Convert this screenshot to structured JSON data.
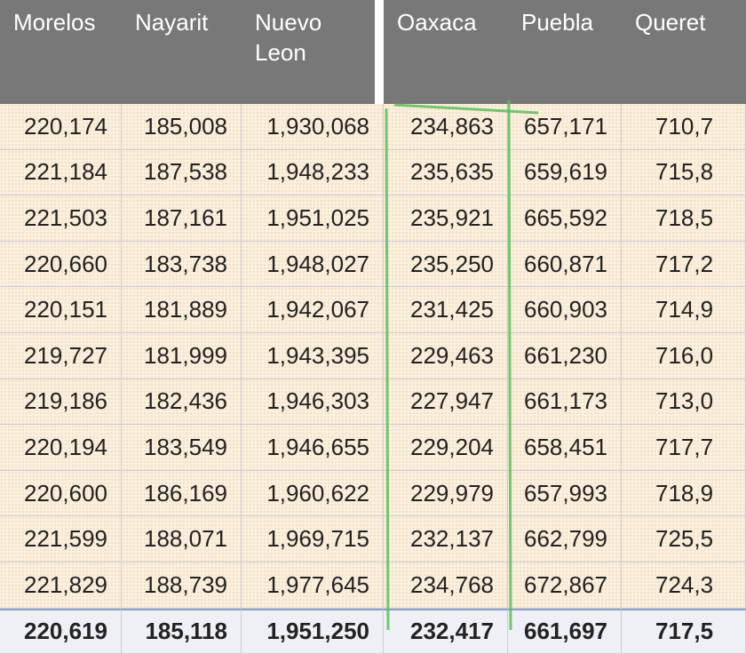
{
  "table": {
    "columns": [
      "Morelos",
      "Nayarit",
      "Nuevo Leon",
      "Oaxaca",
      "Puebla",
      "Queret"
    ],
    "rows": [
      [
        "220,174",
        "185,008",
        "1,930,068",
        "234,863",
        "657,171",
        "710,7"
      ],
      [
        "221,184",
        "187,538",
        "1,948,233",
        "235,635",
        "659,619",
        "715,8"
      ],
      [
        "221,503",
        "187,161",
        "1,951,025",
        "235,921",
        "665,592",
        "718,5"
      ],
      [
        "220,660",
        "183,738",
        "1,948,027",
        "235,250",
        "660,871",
        "717,2"
      ],
      [
        "220,151",
        "181,889",
        "1,942,067",
        "231,425",
        "660,903",
        "714,9"
      ],
      [
        "219,727",
        "181,999",
        "1,943,395",
        "229,463",
        "661,230",
        "716,0"
      ],
      [
        "219,186",
        "182,436",
        "1,946,303",
        "227,947",
        "661,173",
        "713,0"
      ],
      [
        "220,194",
        "183,549",
        "1,946,655",
        "229,204",
        "658,451",
        "717,7"
      ],
      [
        "220,600",
        "186,169",
        "1,960,622",
        "229,979",
        "657,993",
        "718,9"
      ],
      [
        "221,599",
        "188,071",
        "1,969,715",
        "232,137",
        "662,799",
        "725,5"
      ],
      [
        "221,829",
        "188,739",
        "1,977,645",
        "234,768",
        "672,867",
        "724,3"
      ]
    ],
    "summary_row": [
      "220,619",
      "185,118",
      "1,951,250",
      "232,417",
      "661,697",
      "717,5"
    ]
  }
}
